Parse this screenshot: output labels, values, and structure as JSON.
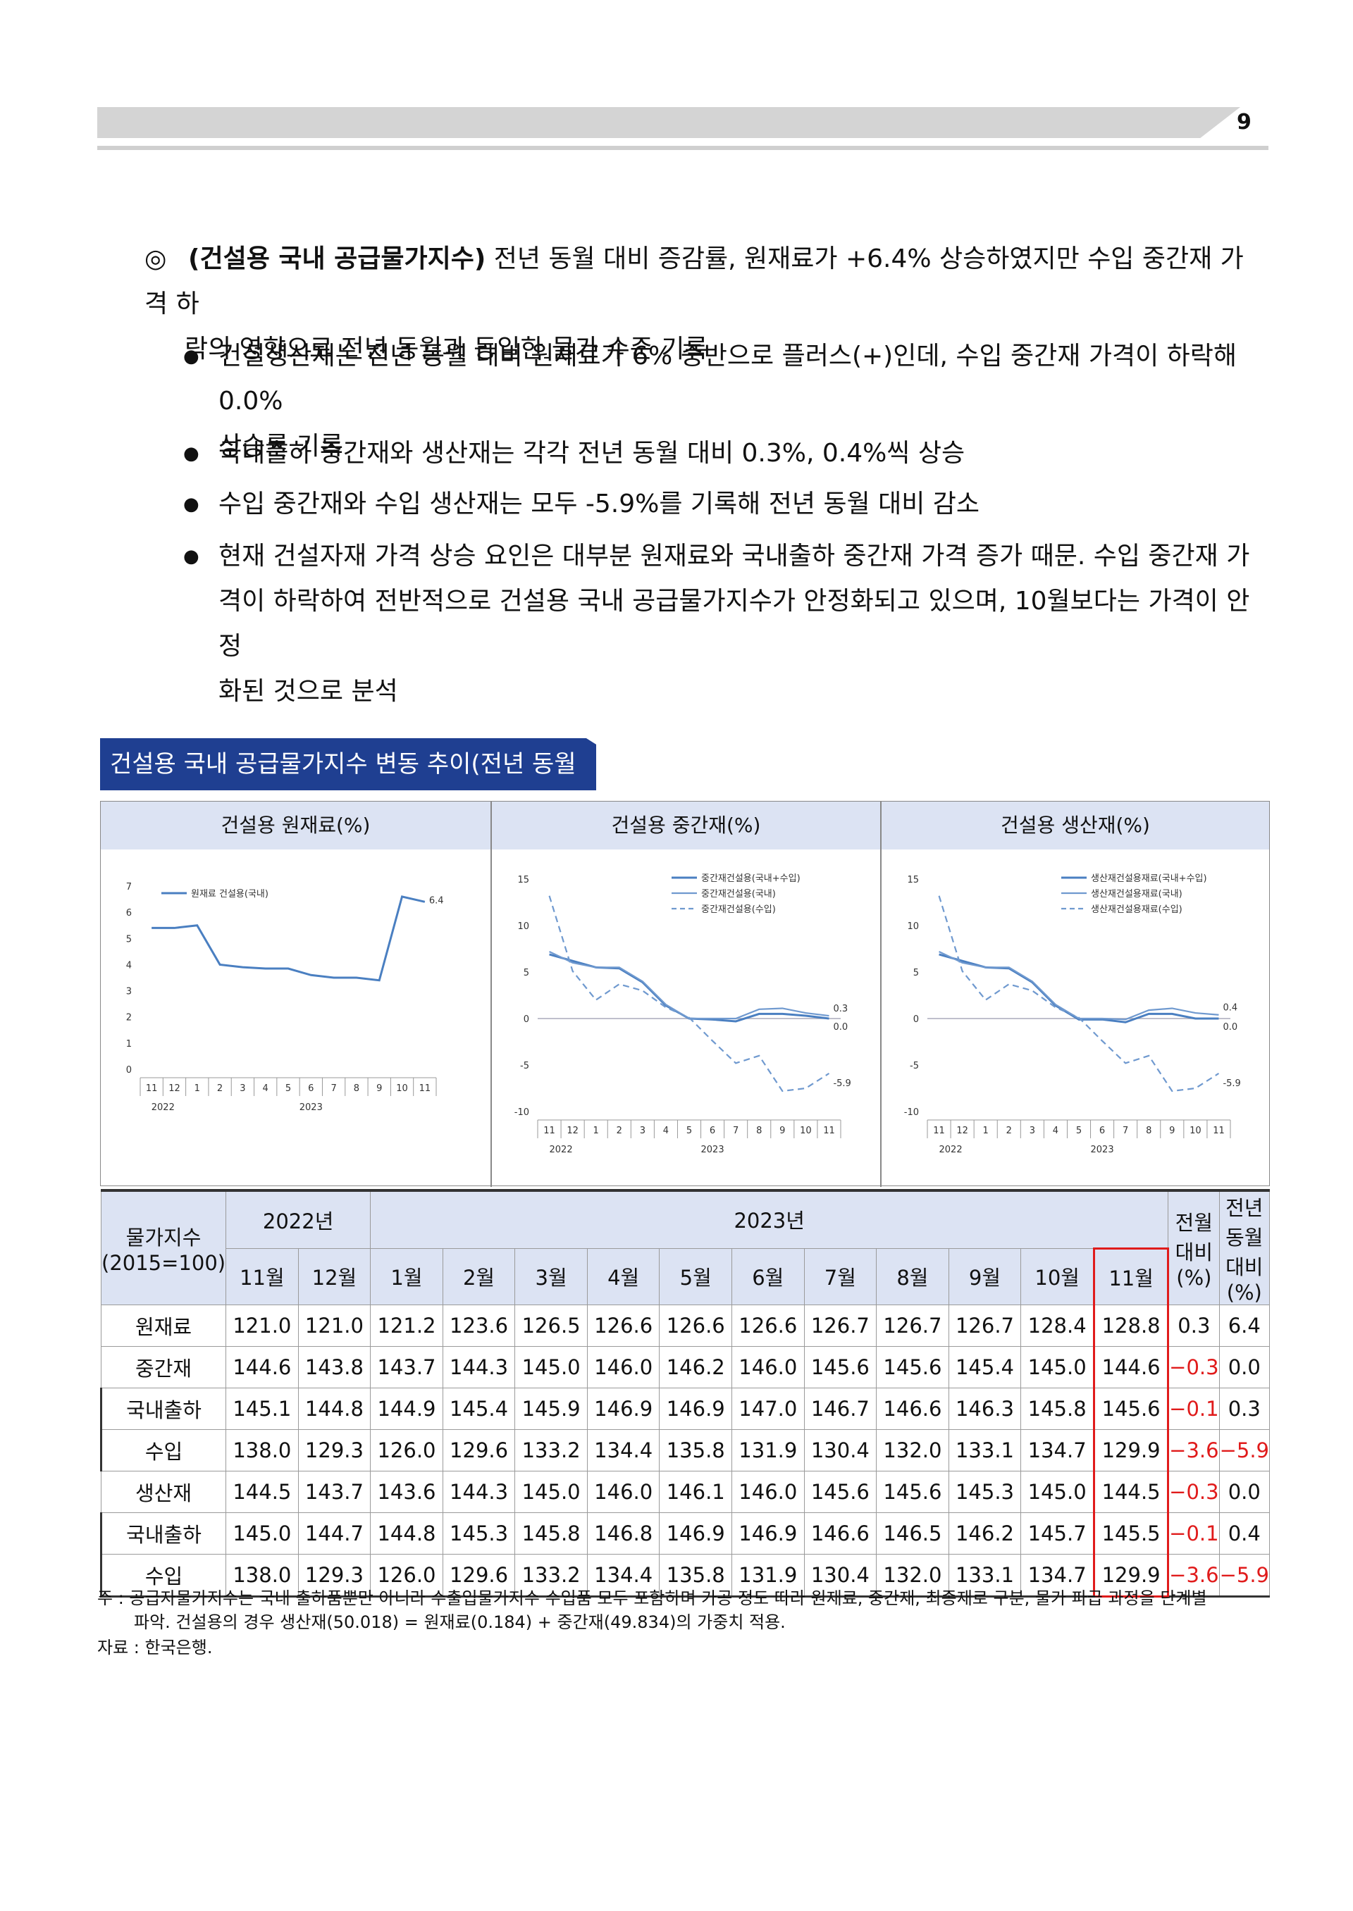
{
  "page_number": "9",
  "lead": {
    "mark": "◎",
    "bold": "(건설용 국내 공급물가지수)",
    "text1": " 전년 동월 대비 증감률, 원재료가 +6.4% 상승하였지만 수입 중간재 가격 하",
    "text2": "락의 영향으로 전년 동월과 동일한 물가 수준 기록"
  },
  "bullets": [
    {
      "dot": "●",
      "lines": [
        "건설생산재는 전년 동월 대비 원재료가 6% 중반으로 플러스(+)인데, 수입 중간재 가격이 하락해 0.0%",
        "상승률 기록"
      ]
    },
    {
      "dot": "●",
      "lines": [
        "국내출하 중간재와 생산재는 각각 전년 동월 대비 0.3%, 0.4%씩 상승"
      ]
    },
    {
      "dot": "●",
      "lines": [
        "수입 중간재와 수입 생산재는 모두 -5.9%를 기록해 전년 동월 대비 감소"
      ]
    },
    {
      "dot": "●",
      "lines": [
        "현재 건설자재 가격 상승 요인은 대부분 원재료와 국내출하 중간재 가격 증가 때문. 수입 중간재 가",
        "격이 하락하여 전반적으로 건설용 국내 공급물가지수가 안정화되고 있으며, 10월보다는 가격이 안정",
        "화된 것으로 분석"
      ]
    }
  ],
  "figure_title": "건설용 국내 공급물가지수 변동 추이(전년 동월 대비)",
  "chart_headers": [
    "건설용 원재료(%)",
    "건설용 중간재(%)",
    "건설용 생산재(%)"
  ],
  "x_ticks": [
    "11",
    "12",
    "1",
    "2",
    "3",
    "4",
    "5",
    "6",
    "7",
    "8",
    "9",
    "10",
    "11"
  ],
  "x_years": [
    "2022",
    "2023"
  ],
  "chart_data": [
    {
      "type": "line",
      "title": "건설용 원재료(%)",
      "x": [
        "11",
        "12",
        "1",
        "2",
        "3",
        "4",
        "5",
        "6",
        "7",
        "8",
        "9",
        "10",
        "11"
      ],
      "ylim": [
        0,
        7
      ],
      "yticks": [
        0,
        1,
        2,
        3,
        4,
        5,
        6,
        7
      ],
      "series": [
        {
          "name": "원재료 건설용(국내)",
          "values": [
            5.4,
            5.4,
            5.5,
            4.0,
            3.9,
            3.85,
            3.85,
            3.6,
            3.5,
            3.5,
            3.4,
            6.6,
            6.4
          ],
          "color": "#4a7fc1",
          "dash": false
        }
      ],
      "end_labels": [
        "6.4"
      ]
    },
    {
      "type": "line",
      "title": "건설용 중간재(%)",
      "x": [
        "11",
        "12",
        "1",
        "2",
        "3",
        "4",
        "5",
        "6",
        "7",
        "8",
        "9",
        "10",
        "11"
      ],
      "ylim": [
        -10,
        15
      ],
      "yticks": [
        -10,
        -5,
        0,
        5,
        10,
        15
      ],
      "series": [
        {
          "name": "중간재건설용(국내+수입)",
          "values": [
            6.9,
            6.2,
            5.5,
            5.4,
            3.9,
            1.4,
            0.0,
            -0.1,
            -0.3,
            0.5,
            0.5,
            0.3,
            0.0
          ],
          "color": "#4a7fc1",
          "dash": false
        },
        {
          "name": "중간재건설용(국내)",
          "values": [
            7.2,
            6.0,
            5.5,
            5.5,
            4.0,
            1.5,
            0.0,
            0.0,
            0.0,
            1.0,
            1.1,
            0.6,
            0.3
          ],
          "color": "#6f99cf",
          "dash": false
        },
        {
          "name": "중간재건설용(수입)",
          "values": [
            13.2,
            5.1,
            2.0,
            3.7,
            3.0,
            1.2,
            0.1,
            -2.4,
            -4.8,
            -4.0,
            -7.8,
            -7.5,
            -5.9
          ],
          "color": "#6f99cf",
          "dash": true
        }
      ],
      "end_labels": [
        "0.3",
        "0.0",
        "-5.9"
      ]
    },
    {
      "type": "line",
      "title": "건설용 생산재(%)",
      "x": [
        "11",
        "12",
        "1",
        "2",
        "3",
        "4",
        "5",
        "6",
        "7",
        "8",
        "9",
        "10",
        "11"
      ],
      "ylim": [
        -10,
        15
      ],
      "yticks": [
        -10,
        -5,
        0,
        5,
        10,
        15
      ],
      "series": [
        {
          "name": "생산재건설용재료(국내+수입)",
          "values": [
            6.9,
            6.2,
            5.5,
            5.4,
            3.9,
            1.4,
            -0.1,
            -0.1,
            -0.4,
            0.5,
            0.5,
            0.0,
            0.0
          ],
          "color": "#4a7fc1",
          "dash": false
        },
        {
          "name": "생산재건설용재료(국내)",
          "values": [
            7.2,
            6.0,
            5.5,
            5.5,
            4.0,
            1.5,
            0.0,
            0.0,
            -0.1,
            0.9,
            1.1,
            0.6,
            0.4
          ],
          "color": "#6f99cf",
          "dash": false
        },
        {
          "name": "생산재건설용재료(수입)",
          "values": [
            13.2,
            5.1,
            2.0,
            3.7,
            3.0,
            1.2,
            0.1,
            -2.4,
            -4.8,
            -4.0,
            -7.8,
            -7.5,
            -5.9
          ],
          "color": "#6f99cf",
          "dash": true
        }
      ],
      "end_labels": [
        "0.4",
        "0.0",
        "-5.9"
      ]
    }
  ],
  "table": {
    "corner": [
      "물가지수",
      "(2015=100)"
    ],
    "year_2022": "2022년",
    "year_2023": "2023년",
    "months": [
      "11월",
      "12월",
      "1월",
      "2월",
      "3월",
      "4월",
      "5월",
      "6월",
      "7월",
      "8월",
      "9월",
      "10월",
      "11월"
    ],
    "mom": [
      "전월",
      "대비(%)"
    ],
    "yoy": [
      "전년",
      "동월",
      "대비(%)"
    ],
    "rows": [
      {
        "label": "원재료",
        "indent": false,
        "values": [
          "121.0",
          "121.0",
          "121.2",
          "123.6",
          "126.5",
          "126.6",
          "126.6",
          "126.6",
          "126.7",
          "126.7",
          "126.7",
          "128.4",
          "128.8"
        ],
        "mom": "0.3",
        "yoy": "6.4"
      },
      {
        "label": "중간재",
        "indent": false,
        "values": [
          "144.6",
          "143.8",
          "143.7",
          "144.3",
          "145.0",
          "146.0",
          "146.2",
          "146.0",
          "145.6",
          "145.6",
          "145.4",
          "145.0",
          "144.6"
        ],
        "mom": "−0.3",
        "yoy": "0.0"
      },
      {
        "label": "국내출하",
        "indent": true,
        "values": [
          "145.1",
          "144.8",
          "144.9",
          "145.4",
          "145.9",
          "146.9",
          "146.9",
          "147.0",
          "146.7",
          "146.6",
          "146.3",
          "145.8",
          "145.6"
        ],
        "mom": "−0.1",
        "yoy": "0.3"
      },
      {
        "label": "수입",
        "indent": true,
        "values": [
          "138.0",
          "129.3",
          "126.0",
          "129.6",
          "133.2",
          "134.4",
          "135.8",
          "131.9",
          "130.4",
          "132.0",
          "133.1",
          "134.7",
          "129.9"
        ],
        "mom": "−3.6",
        "yoy": "−5.9"
      },
      {
        "label": "생산재",
        "indent": false,
        "values": [
          "144.5",
          "143.7",
          "143.6",
          "144.3",
          "145.0",
          "146.0",
          "146.1",
          "146.0",
          "145.6",
          "145.6",
          "145.3",
          "145.0",
          "144.5"
        ],
        "mom": "−0.3",
        "yoy": "0.0"
      },
      {
        "label": "국내출하",
        "indent": true,
        "values": [
          "145.0",
          "144.7",
          "144.8",
          "145.3",
          "145.8",
          "146.8",
          "146.9",
          "146.9",
          "146.6",
          "146.5",
          "146.2",
          "145.7",
          "145.5"
        ],
        "mom": "−0.1",
        "yoy": "0.4"
      },
      {
        "label": "수입",
        "indent": true,
        "values": [
          "138.0",
          "129.3",
          "126.0",
          "129.6",
          "133.2",
          "134.4",
          "135.8",
          "131.9",
          "130.4",
          "132.0",
          "133.1",
          "134.7",
          "129.9"
        ],
        "mom": "−3.6",
        "yoy": "−5.9"
      }
    ]
  },
  "notes": [
    "주 : 공급자물가지수는 국내 출하품뿐만 아니라 수출입물가지수 수입품 모두 포함하며 가공 정도 따라 원재료, 중간재, 최종재로 구분, 물가 파급 과정을 단계별",
    "파악. 건설용의 경우 생산재(50.018) = 원재료(0.184) + 중간재(49.834)의 가중치 적용.",
    "자료 : 한국은행."
  ],
  "colors": {
    "accent": "#1f3f91",
    "header_fill": "#dce3f3",
    "negative": "#e01b1b",
    "line": "#4a7fc1"
  }
}
